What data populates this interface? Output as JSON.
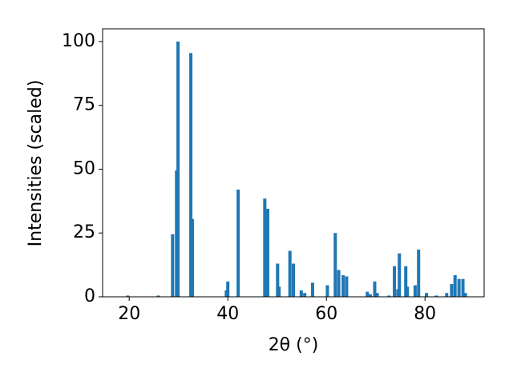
{
  "chart_data": {
    "type": "bar",
    "x_label": "2θ (°)",
    "y_label": "Intensities (scaled)",
    "x": [
      19.7,
      25.9,
      28.8,
      29.6,
      29.9,
      32.5,
      32.8,
      39.7,
      40.0,
      42.1,
      47.5,
      48.1,
      50.1,
      50.4,
      52.6,
      53.3,
      54.9,
      55.6,
      57.2,
      60.2,
      61.8,
      62.5,
      63.4,
      64.1,
      68.3,
      68.9,
      69.8,
      70.3,
      72.7,
      73.8,
      74.5,
      74.8,
      76.1,
      76.4,
      78.0,
      78.7,
      80.3,
      82.3,
      84.4,
      85.4,
      86.1,
      86.9,
      87.7,
      88.2
    ],
    "values": [
      0.5,
      0.5,
      24.5,
      49.5,
      100,
      95.5,
      30.5,
      2.5,
      6,
      42,
      38.5,
      34.5,
      13,
      4,
      18,
      13,
      2.5,
      1.5,
      5.5,
      4.5,
      25,
      10.5,
      8.5,
      8,
      2,
      1,
      6,
      1.5,
      0.5,
      12,
      3,
      17,
      12,
      4,
      4.5,
      18.5,
      1.5,
      0.5,
      1.5,
      5,
      8.5,
      7,
      7,
      1.5
    ],
    "color": "#1f77b4",
    "xlim": [
      14.6,
      92.0
    ],
    "xticks": [
      20,
      40,
      60,
      80
    ],
    "ylim": [
      0,
      105
    ],
    "yticks": [
      0,
      25,
      50,
      75,
      100
    ]
  }
}
